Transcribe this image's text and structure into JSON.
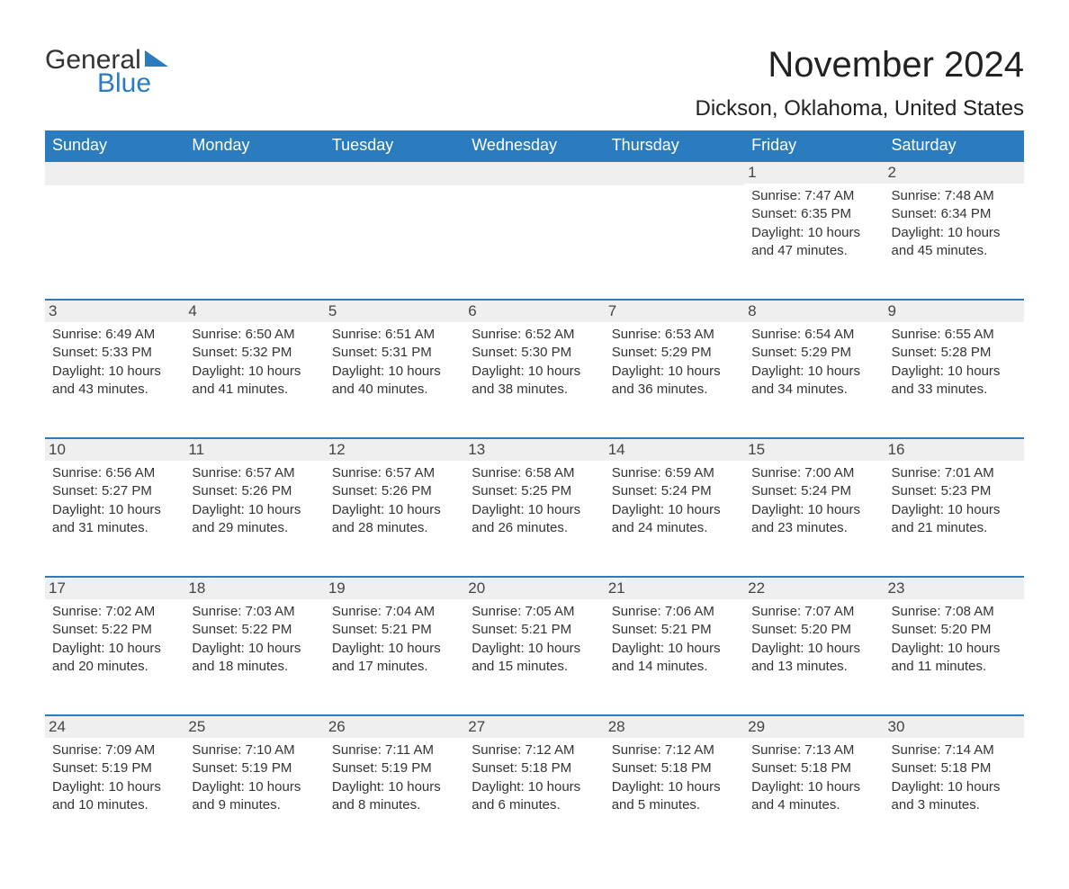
{
  "logo": {
    "text_general": "General",
    "text_blue": "Blue",
    "flag_color": "#2a7cbf"
  },
  "header": {
    "month_title": "November 2024",
    "location": "Dickson, Oklahoma, United States"
  },
  "colors": {
    "header_bg": "#2a7cbf",
    "header_text": "#ffffff",
    "day_row_bg": "#efefef",
    "day_row_border": "#2a7cbf",
    "body_text": "#333333",
    "page_bg": "#ffffff"
  },
  "weekday_headers": [
    "Sunday",
    "Monday",
    "Tuesday",
    "Wednesday",
    "Thursday",
    "Friday",
    "Saturday"
  ],
  "labels": {
    "sunrise": "Sunrise:",
    "sunset": "Sunset:",
    "daylight": "Daylight:"
  },
  "weeks": [
    [
      {
        "day": "",
        "empty": true
      },
      {
        "day": "",
        "empty": true
      },
      {
        "day": "",
        "empty": true
      },
      {
        "day": "",
        "empty": true
      },
      {
        "day": "",
        "empty": true
      },
      {
        "day": "1",
        "sunrise": "7:47 AM",
        "sunset": "6:35 PM",
        "daylight": "10 hours and 47 minutes."
      },
      {
        "day": "2",
        "sunrise": "7:48 AM",
        "sunset": "6:34 PM",
        "daylight": "10 hours and 45 minutes."
      }
    ],
    [
      {
        "day": "3",
        "sunrise": "6:49 AM",
        "sunset": "5:33 PM",
        "daylight": "10 hours and 43 minutes."
      },
      {
        "day": "4",
        "sunrise": "6:50 AM",
        "sunset": "5:32 PM",
        "daylight": "10 hours and 41 minutes."
      },
      {
        "day": "5",
        "sunrise": "6:51 AM",
        "sunset": "5:31 PM",
        "daylight": "10 hours and 40 minutes."
      },
      {
        "day": "6",
        "sunrise": "6:52 AM",
        "sunset": "5:30 PM",
        "daylight": "10 hours and 38 minutes."
      },
      {
        "day": "7",
        "sunrise": "6:53 AM",
        "sunset": "5:29 PM",
        "daylight": "10 hours and 36 minutes."
      },
      {
        "day": "8",
        "sunrise": "6:54 AM",
        "sunset": "5:29 PM",
        "daylight": "10 hours and 34 minutes."
      },
      {
        "day": "9",
        "sunrise": "6:55 AM",
        "sunset": "5:28 PM",
        "daylight": "10 hours and 33 minutes."
      }
    ],
    [
      {
        "day": "10",
        "sunrise": "6:56 AM",
        "sunset": "5:27 PM",
        "daylight": "10 hours and 31 minutes."
      },
      {
        "day": "11",
        "sunrise": "6:57 AM",
        "sunset": "5:26 PM",
        "daylight": "10 hours and 29 minutes."
      },
      {
        "day": "12",
        "sunrise": "6:57 AM",
        "sunset": "5:26 PM",
        "daylight": "10 hours and 28 minutes."
      },
      {
        "day": "13",
        "sunrise": "6:58 AM",
        "sunset": "5:25 PM",
        "daylight": "10 hours and 26 minutes."
      },
      {
        "day": "14",
        "sunrise": "6:59 AM",
        "sunset": "5:24 PM",
        "daylight": "10 hours and 24 minutes."
      },
      {
        "day": "15",
        "sunrise": "7:00 AM",
        "sunset": "5:24 PM",
        "daylight": "10 hours and 23 minutes."
      },
      {
        "day": "16",
        "sunrise": "7:01 AM",
        "sunset": "5:23 PM",
        "daylight": "10 hours and 21 minutes."
      }
    ],
    [
      {
        "day": "17",
        "sunrise": "7:02 AM",
        "sunset": "5:22 PM",
        "daylight": "10 hours and 20 minutes."
      },
      {
        "day": "18",
        "sunrise": "7:03 AM",
        "sunset": "5:22 PM",
        "daylight": "10 hours and 18 minutes."
      },
      {
        "day": "19",
        "sunrise": "7:04 AM",
        "sunset": "5:21 PM",
        "daylight": "10 hours and 17 minutes."
      },
      {
        "day": "20",
        "sunrise": "7:05 AM",
        "sunset": "5:21 PM",
        "daylight": "10 hours and 15 minutes."
      },
      {
        "day": "21",
        "sunrise": "7:06 AM",
        "sunset": "5:21 PM",
        "daylight": "10 hours and 14 minutes."
      },
      {
        "day": "22",
        "sunrise": "7:07 AM",
        "sunset": "5:20 PM",
        "daylight": "10 hours and 13 minutes."
      },
      {
        "day": "23",
        "sunrise": "7:08 AM",
        "sunset": "5:20 PM",
        "daylight": "10 hours and 11 minutes."
      }
    ],
    [
      {
        "day": "24",
        "sunrise": "7:09 AM",
        "sunset": "5:19 PM",
        "daylight": "10 hours and 10 minutes."
      },
      {
        "day": "25",
        "sunrise": "7:10 AM",
        "sunset": "5:19 PM",
        "daylight": "10 hours and 9 minutes."
      },
      {
        "day": "26",
        "sunrise": "7:11 AM",
        "sunset": "5:19 PM",
        "daylight": "10 hours and 8 minutes."
      },
      {
        "day": "27",
        "sunrise": "7:12 AM",
        "sunset": "5:18 PM",
        "daylight": "10 hours and 6 minutes."
      },
      {
        "day": "28",
        "sunrise": "7:12 AM",
        "sunset": "5:18 PM",
        "daylight": "10 hours and 5 minutes."
      },
      {
        "day": "29",
        "sunrise": "7:13 AM",
        "sunset": "5:18 PM",
        "daylight": "10 hours and 4 minutes."
      },
      {
        "day": "30",
        "sunrise": "7:14 AM",
        "sunset": "5:18 PM",
        "daylight": "10 hours and 3 minutes."
      }
    ]
  ]
}
